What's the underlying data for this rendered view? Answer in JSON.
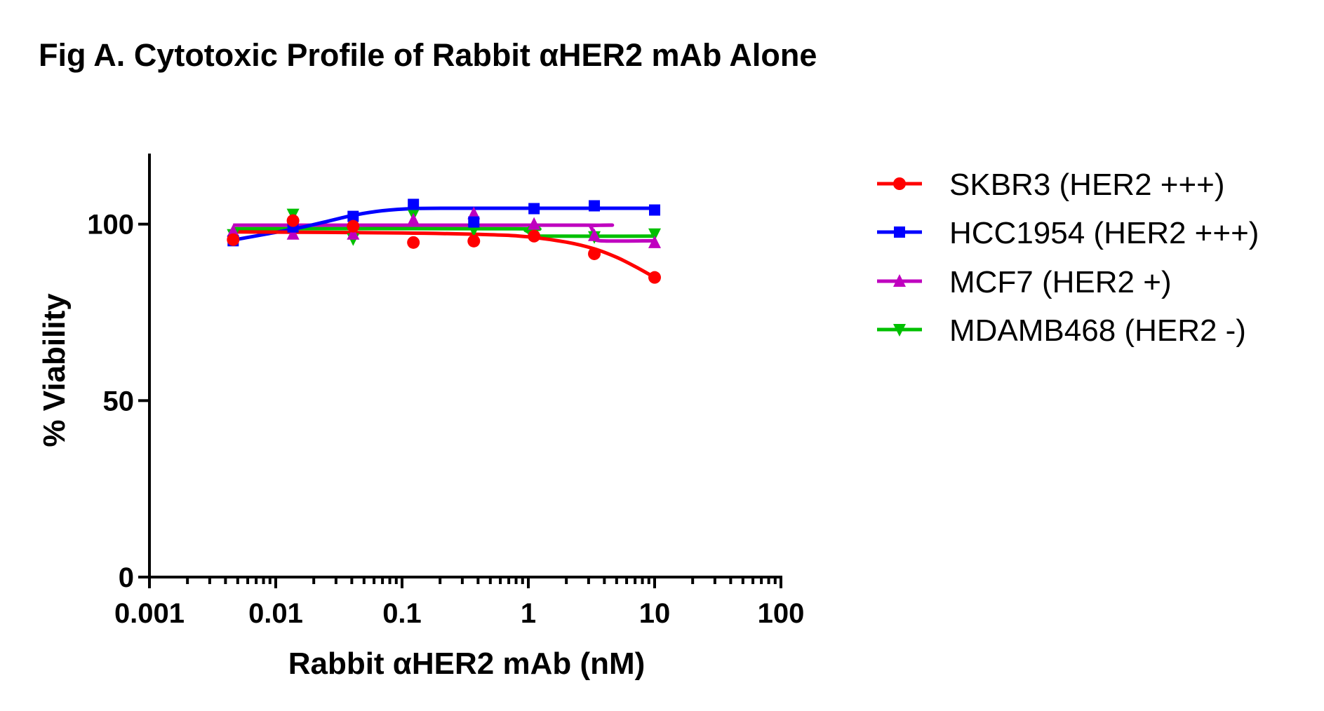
{
  "chart_data": {
    "type": "line",
    "title": "Fig A. Cytotoxic Profile of Rabbit αHER2 mAb Alone",
    "xlabel": "Rabbit αHER2 mAb (nM)",
    "ylabel": "% Viability",
    "xscale": "log",
    "xlim": [
      0.001,
      100
    ],
    "ylim": [
      0,
      120
    ],
    "xticks": [
      0.001,
      0.01,
      0.1,
      1,
      10,
      100
    ],
    "xtick_labels": [
      "0.001",
      "0.01",
      "0.1",
      "1",
      "10",
      "100"
    ],
    "yticks": [
      0,
      50,
      100
    ],
    "ytick_labels": [
      "0",
      "50",
      "100"
    ],
    "grid": false,
    "legend_position": "right",
    "x": [
      0.0046,
      0.0137,
      0.041,
      0.123,
      0.37,
      1.11,
      3.33,
      10
    ],
    "series": [
      {
        "name": "SKBR3 (HER2 +++)",
        "color": "#ff0000",
        "marker": "circle",
        "values": [
          95.6,
          101.0,
          99.4,
          94.8,
          95.2,
          96.6,
          91.6,
          84.9
        ],
        "fit": {
          "x": [
            0.0046,
            0.1,
            0.5,
            1,
            2,
            3.33,
            5,
            7,
            10
          ],
          "y": [
            97.8,
            97.5,
            97.0,
            96.4,
            94.9,
            93.0,
            90.6,
            88.0,
            84.9
          ]
        }
      },
      {
        "name": "HCC1954 (HER2 +++)",
        "color": "#0000ff",
        "marker": "square",
        "values": [
          95.3,
          99.2,
          102.2,
          105.6,
          100.6,
          104.4,
          105.2,
          104.0
        ],
        "fit": {
          "x": [
            0.0046,
            0.0137,
            0.025,
            0.041,
            0.07,
            0.123,
            0.3,
            10
          ],
          "y": [
            95.5,
            98.6,
            100.7,
            102.5,
            103.8,
            104.4,
            104.5,
            104.5
          ]
        }
      },
      {
        "name": "MCF7 (HER2 +)",
        "color": "#bf00bf",
        "marker": "triangle-up",
        "values": [
          98.0,
          97.2,
          97.2,
          101.2,
          103.0,
          100.0,
          96.8,
          94.8
        ],
        "fit": {
          "x": [
            0.0046,
            2.8,
            3.1,
            3.4,
            3.7,
            10
          ],
          "y": [
            99.7,
            99.7,
            99.4,
            96.5,
            95.3,
            95.3
          ]
        }
      },
      {
        "name": "MDAMB468 (HER2 -)",
        "color": "#00c000",
        "marker": "triangle-down",
        "values": [
          97.0,
          102.8,
          95.8,
          102.8,
          98.4,
          97.8,
          96.4,
          97.2
        ],
        "fit": {
          "x": [
            0.0046,
            0.8,
            0.95,
            1.1,
            1.3,
            10
          ],
          "y": [
            98.7,
            98.7,
            98.2,
            96.8,
            96.6,
            96.6
          ]
        }
      }
    ]
  }
}
